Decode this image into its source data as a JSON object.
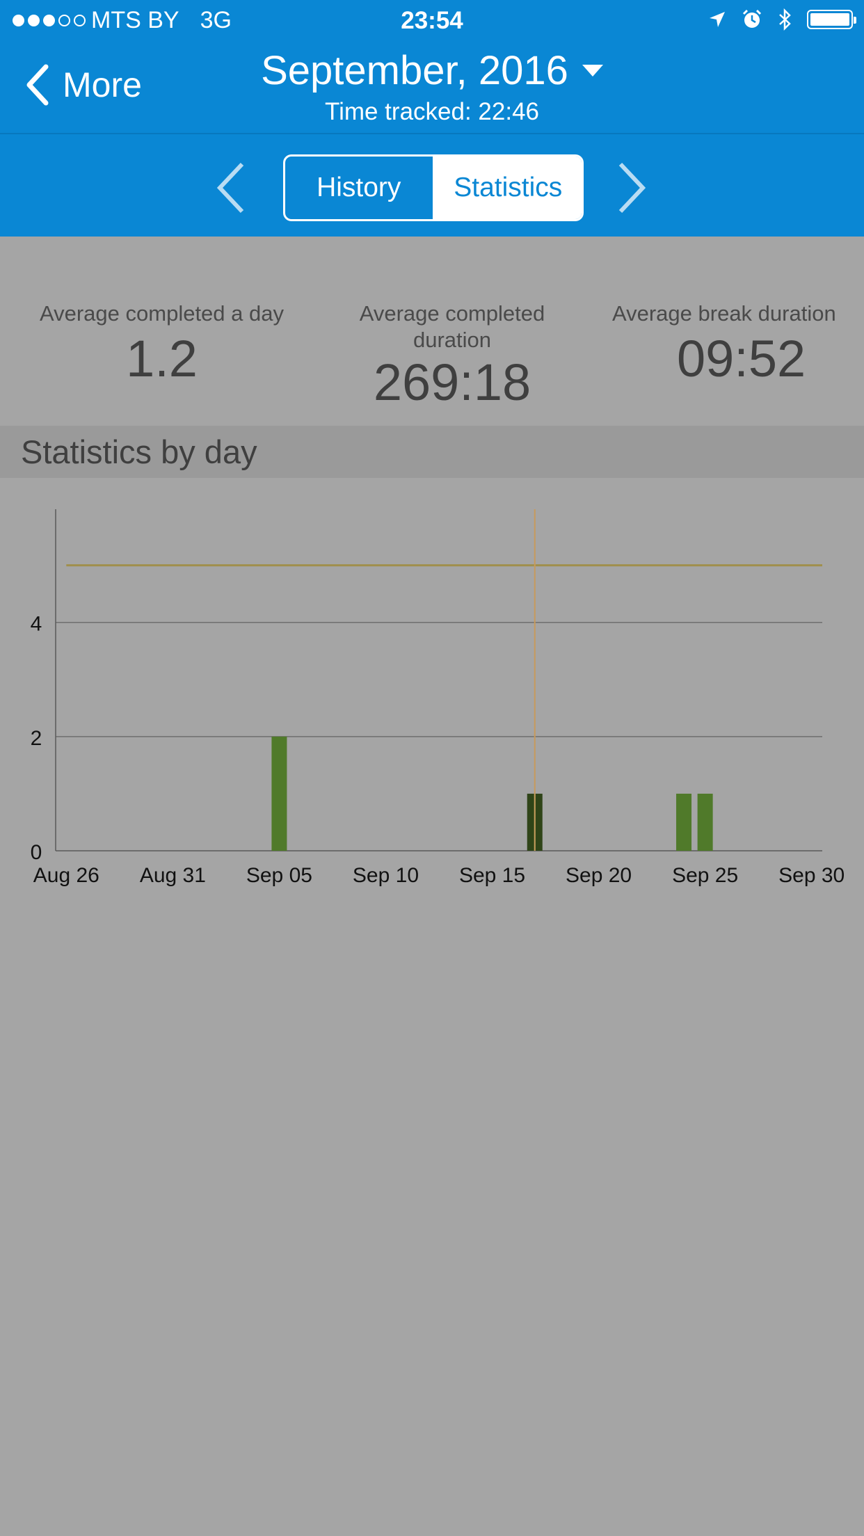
{
  "status_bar": {
    "carrier": "MTS BY",
    "network": "3G",
    "time": "23:54",
    "signal_bars": 3,
    "signal_total": 5,
    "icons": [
      "location-arrow-icon",
      "alarm-clock-icon",
      "bluetooth-icon",
      "battery-icon"
    ],
    "battery_level": 1.0
  },
  "nav": {
    "back_label": "More",
    "title": "September, 2016",
    "subtitle": "Time tracked: 22:46"
  },
  "segments": {
    "history": "History",
    "statistics": "Statistics",
    "selected": "statistics"
  },
  "summary": {
    "items": [
      {
        "label": "Average completed a day",
        "value": "1.2"
      },
      {
        "label": "Average completed duration",
        "value": "269:18"
      },
      {
        "label": "Average break duration",
        "value": "09:52"
      }
    ]
  },
  "section": {
    "title": "Statistics by day"
  },
  "colors": {
    "header": "#0a87d4",
    "background": "#a5a5a5",
    "bar": "#507a2a",
    "bar_selected": "#2f4418",
    "target_line": "#a08f4c",
    "cursor_line": "#c79a5c"
  },
  "chart_data": {
    "type": "bar",
    "x_ticks": [
      "Aug 26",
      "Aug 31",
      "Sep 05",
      "Sep 10",
      "Sep 15",
      "Sep 20",
      "Sep 25",
      "Sep 30"
    ],
    "y_ticks": [
      "0",
      "2",
      "4"
    ],
    "ylim": [
      0,
      5.8
    ],
    "xlim_days": [
      -0.5,
      35.5
    ],
    "target_value": 5,
    "cursor_x": "Sep 17",
    "bars": [
      {
        "x": "Sep 05",
        "value": 2,
        "selected": false
      },
      {
        "x": "Sep 17",
        "value": 1,
        "selected": true
      },
      {
        "x": "Sep 24",
        "value": 1,
        "selected": false
      },
      {
        "x": "Sep 25",
        "value": 1,
        "selected": false
      }
    ],
    "grid": true
  }
}
